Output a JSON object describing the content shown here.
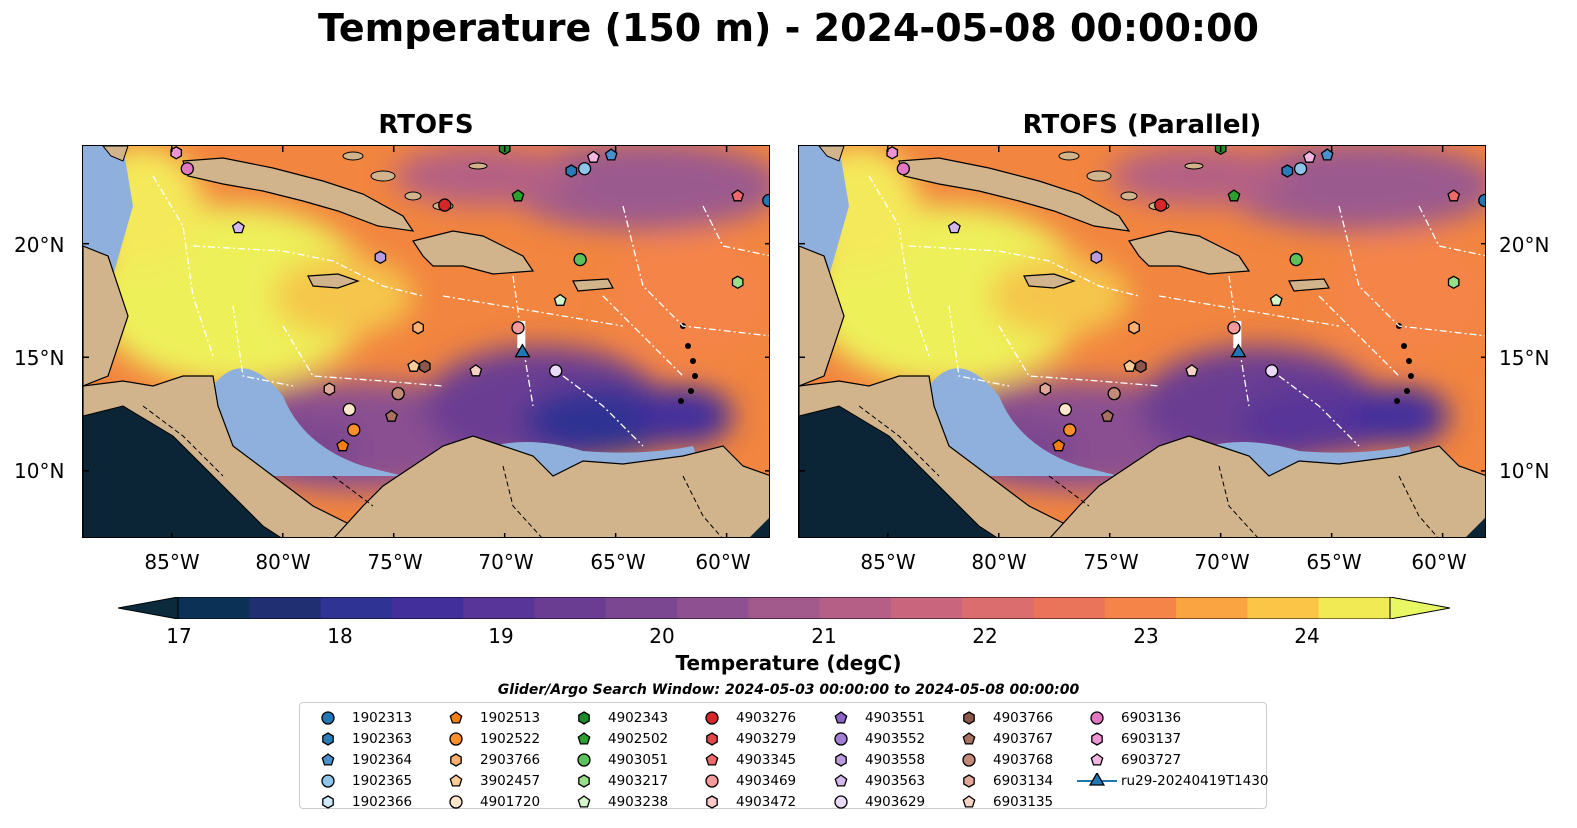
{
  "title": "Temperature (150 m) - 2024-05-08 00:00:00",
  "panels": [
    {
      "title": "RTOFS"
    },
    {
      "title": "RTOFS (Parallel)"
    }
  ],
  "lat_ticks": [
    "20°N",
    "15°N",
    "10°N"
  ],
  "lon_ticks": [
    "85°W",
    "80°W",
    "75°W",
    "70°W",
    "65°W",
    "60°W"
  ],
  "colorbar": {
    "label": "Temperature (degC)",
    "ticks": [
      "17",
      "18",
      "19",
      "20",
      "21",
      "22",
      "23",
      "24"
    ],
    "min": 17,
    "max": 24.5,
    "step": 0.5,
    "extend": "both",
    "colors": [
      "#0b2a3c",
      "#0c3157",
      "#1f2f72",
      "#2f3393",
      "#432f9c",
      "#583598",
      "#6a3d93",
      "#7b4790",
      "#8e5090",
      "#a2598c",
      "#b65f86",
      "#c9667e",
      "#dc6d6f",
      "#ea7459",
      "#f58448",
      "#f9a341",
      "#fbc548",
      "#f1ea55",
      "#e7f864"
    ]
  },
  "search_window": "Glider/Argo Search Window: 2024-05-03 00:00:00 to 2024-05-08 00:00:00",
  "legend": {
    "columns": [
      [
        {
          "label": "1902313",
          "marker": "circle",
          "color": "#1f77b4"
        },
        {
          "label": "1902363",
          "marker": "hexagon",
          "color": "#2a7ab8"
        },
        {
          "label": "1902364",
          "marker": "pentagon",
          "color": "#4a90cc"
        },
        {
          "label": "1902365",
          "marker": "circle",
          "color": "#8ec3ea"
        },
        {
          "label": "1902366",
          "marker": "hexagon",
          "color": "#cfe9fa"
        }
      ],
      [
        {
          "label": "1902513",
          "marker": "pentagon",
          "color": "#f57f10"
        },
        {
          "label": "1902522",
          "marker": "circle",
          "color": "#ff8f2a"
        },
        {
          "label": "2903766",
          "marker": "hexagon",
          "color": "#ffb070"
        },
        {
          "label": "3902457",
          "marker": "pentagon",
          "color": "#ffcc99"
        },
        {
          "label": "4901720",
          "marker": "circle",
          "color": "#ffe6cc"
        }
      ],
      [
        {
          "label": "4902343",
          "marker": "hexagon",
          "color": "#1e8a2a"
        },
        {
          "label": "4902502",
          "marker": "pentagon",
          "color": "#2ca02c"
        },
        {
          "label": "4903051",
          "marker": "circle",
          "color": "#5cc15c"
        },
        {
          "label": "4903217",
          "marker": "hexagon",
          "color": "#98df8a"
        },
        {
          "label": "4903238",
          "marker": "pentagon",
          "color": "#d4f5cc"
        }
      ],
      [
        {
          "label": "4903276",
          "marker": "circle",
          "color": "#d62728"
        },
        {
          "label": "4903279",
          "marker": "hexagon",
          "color": "#e04848"
        },
        {
          "label": "4903345",
          "marker": "pentagon",
          "color": "#ec6a6a"
        },
        {
          "label": "4903469",
          "marker": "circle",
          "color": "#f59a9a"
        },
        {
          "label": "4903472",
          "marker": "hexagon",
          "color": "#fcc8c8"
        }
      ],
      [
        {
          "label": "4903551",
          "marker": "pentagon",
          "color": "#8c64c8"
        },
        {
          "label": "4903552",
          "marker": "circle",
          "color": "#a37fd4"
        },
        {
          "label": "4903558",
          "marker": "hexagon",
          "color": "#bb9be0"
        },
        {
          "label": "4903563",
          "marker": "pentagon",
          "color": "#d2b8ec"
        },
        {
          "label": "4903629",
          "marker": "circle",
          "color": "#e9dbf7"
        }
      ],
      [
        {
          "label": "4903766",
          "marker": "hexagon",
          "color": "#8c564b"
        },
        {
          "label": "4903767",
          "marker": "pentagon",
          "color": "#a8705f"
        },
        {
          "label": "4903768",
          "marker": "circle",
          "color": "#c48a78"
        },
        {
          "label": "6903134",
          "marker": "hexagon",
          "color": "#dfa898"
        },
        {
          "label": "6903135",
          "marker": "pentagon",
          "color": "#f6d3c6"
        }
      ],
      [
        {
          "label": "6903136",
          "marker": "circle",
          "color": "#e377c2"
        },
        {
          "label": "6903137",
          "marker": "hexagon",
          "color": "#ec95d2"
        },
        {
          "label": "6903727",
          "marker": "pentagon",
          "color": "#f4b6e3"
        },
        {
          "label": "ru29-20240419T1430",
          "marker": "triangle",
          "color": "#1f77b4"
        }
      ]
    ]
  },
  "map_extent": {
    "lon": [
      -89,
      -58
    ],
    "lat": [
      7,
      24.3
    ]
  },
  "floats": [
    {
      "id": "1902313",
      "lon": -58.1,
      "lat": 21.9
    },
    {
      "id": "1902363",
      "lon": -67.0,
      "lat": 23.2
    },
    {
      "id": "1902364",
      "lon": -65.2,
      "lat": 23.9
    },
    {
      "id": "1902365",
      "lon": -66.4,
      "lat": 23.3
    },
    {
      "id": "1902513",
      "lon": -77.3,
      "lat": 11.1
    },
    {
      "id": "1902522",
      "lon": -76.8,
      "lat": 11.8
    },
    {
      "id": "2903766",
      "lon": -73.9,
      "lat": 16.3
    },
    {
      "id": "3902457",
      "lon": -74.1,
      "lat": 14.6
    },
    {
      "id": "4901720",
      "lon": -77.0,
      "lat": 12.7
    },
    {
      "id": "4902343",
      "lon": -70.0,
      "lat": 24.2
    },
    {
      "id": "4902502",
      "lon": -69.4,
      "lat": 22.1
    },
    {
      "id": "4903051",
      "lon": -66.6,
      "lat": 19.3
    },
    {
      "id": "4903217",
      "lon": -59.5,
      "lat": 18.3
    },
    {
      "id": "4903238",
      "lon": -67.5,
      "lat": 17.5
    },
    {
      "id": "4903276",
      "lon": -72.7,
      "lat": 21.7
    },
    {
      "id": "4903345",
      "lon": -59.5,
      "lat": 22.1
    },
    {
      "id": "4903469",
      "lon": -69.4,
      "lat": 16.3
    },
    {
      "id": "4903558",
      "lon": -75.6,
      "lat": 19.4
    },
    {
      "id": "4903563",
      "lon": -82.0,
      "lat": 20.7
    },
    {
      "id": "4903629",
      "lon": -67.7,
      "lat": 14.4
    },
    {
      "id": "4903766",
      "lon": -73.6,
      "lat": 14.6
    },
    {
      "id": "4903767",
      "lon": -75.1,
      "lat": 12.4
    },
    {
      "id": "4903768",
      "lon": -74.8,
      "lat": 13.4
    },
    {
      "id": "6903134",
      "lon": -77.9,
      "lat": 13.6
    },
    {
      "id": "6903136",
      "lon": -84.3,
      "lat": 23.3
    },
    {
      "id": "6903137",
      "lon": -84.8,
      "lat": 24.0
    },
    {
      "id": "6903727",
      "lon": -66.0,
      "lat": 23.8
    },
    {
      "id": "6903135",
      "lon": -71.3,
      "lat": 14.4
    },
    {
      "id": "ru29-20240419T1430",
      "lon": -69.2,
      "lat": 15.2
    }
  ]
}
